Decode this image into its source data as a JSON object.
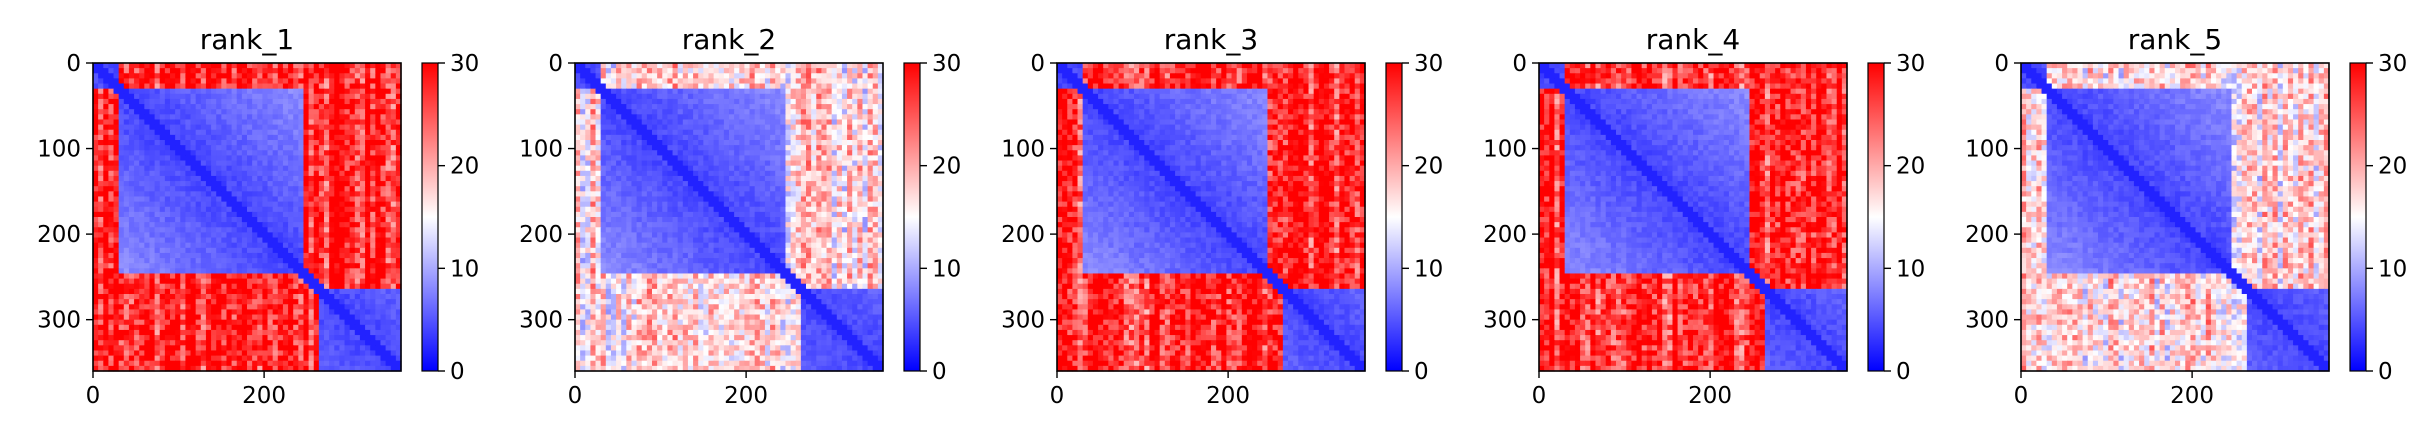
{
  "figure": {
    "panel_titles": [
      "rank_1",
      "rank_2",
      "rank_3",
      "rank_4",
      "rank_5"
    ]
  },
  "chart_data": [
    {
      "type": "heatmap",
      "title": "rank_1",
      "matrix_size": 360,
      "x_ticks": [
        0,
        200
      ],
      "y_ticks": [
        0,
        100,
        200,
        300
      ],
      "xlim": [
        0,
        360
      ],
      "ylim": [
        360,
        0
      ],
      "colorbar": {
        "range": [
          0,
          30
        ],
        "ticks": [
          0,
          10,
          20,
          30
        ],
        "colormap": [
          "#0000ff",
          "#ffffff",
          "#ff0000"
        ]
      },
      "domains": [
        {
          "start": 0,
          "end": 30
        },
        {
          "start": 30,
          "end": 245
        },
        {
          "start": 262,
          "end": 360
        }
      ],
      "inter_domain_value": 28,
      "intra_domain_value": 3
    },
    {
      "type": "heatmap",
      "title": "rank_2",
      "matrix_size": 360,
      "x_ticks": [
        0,
        200
      ],
      "y_ticks": [
        0,
        100,
        200,
        300
      ],
      "xlim": [
        0,
        360
      ],
      "ylim": [
        360,
        0
      ],
      "colorbar": {
        "range": [
          0,
          30
        ],
        "ticks": [
          0,
          10,
          20,
          30
        ],
        "colormap": [
          "#0000ff",
          "#ffffff",
          "#ff0000"
        ]
      },
      "domains": [
        {
          "start": 0,
          "end": 30
        },
        {
          "start": 30,
          "end": 245
        },
        {
          "start": 262,
          "end": 360
        }
      ],
      "inter_domain_value": 17,
      "intra_domain_value": 3
    },
    {
      "type": "heatmap",
      "title": "rank_3",
      "matrix_size": 360,
      "x_ticks": [
        0,
        200
      ],
      "y_ticks": [
        0,
        100,
        200,
        300
      ],
      "xlim": [
        0,
        360
      ],
      "ylim": [
        360,
        0
      ],
      "colorbar": {
        "range": [
          0,
          30
        ],
        "ticks": [
          0,
          10,
          20,
          30
        ],
        "colormap": [
          "#0000ff",
          "#ffffff",
          "#ff0000"
        ]
      },
      "domains": [
        {
          "start": 0,
          "end": 30
        },
        {
          "start": 30,
          "end": 245
        },
        {
          "start": 262,
          "end": 360
        }
      ],
      "inter_domain_value": 27,
      "intra_domain_value": 3
    },
    {
      "type": "heatmap",
      "title": "rank_4",
      "matrix_size": 360,
      "x_ticks": [
        0,
        200
      ],
      "y_ticks": [
        0,
        100,
        200,
        300
      ],
      "xlim": [
        0,
        360
      ],
      "ylim": [
        360,
        0
      ],
      "colorbar": {
        "range": [
          0,
          30
        ],
        "ticks": [
          0,
          10,
          20,
          30
        ],
        "colormap": [
          "#0000ff",
          "#ffffff",
          "#ff0000"
        ]
      },
      "domains": [
        {
          "start": 0,
          "end": 30
        },
        {
          "start": 30,
          "end": 245
        },
        {
          "start": 262,
          "end": 360
        }
      ],
      "inter_domain_value": 27,
      "intra_domain_value": 3
    },
    {
      "type": "heatmap",
      "title": "rank_5",
      "matrix_size": 360,
      "x_ticks": [
        0,
        200
      ],
      "y_ticks": [
        0,
        100,
        200,
        300
      ],
      "xlim": [
        0,
        360
      ],
      "ylim": [
        360,
        0
      ],
      "colorbar": {
        "range": [
          0,
          30
        ],
        "ticks": [
          0,
          10,
          20,
          30
        ],
        "colormap": [
          "#0000ff",
          "#ffffff",
          "#ff0000"
        ]
      },
      "domains": [
        {
          "start": 0,
          "end": 30
        },
        {
          "start": 30,
          "end": 245
        },
        {
          "start": 262,
          "end": 360
        }
      ],
      "inter_domain_value": 17,
      "intra_domain_value": 3
    }
  ]
}
